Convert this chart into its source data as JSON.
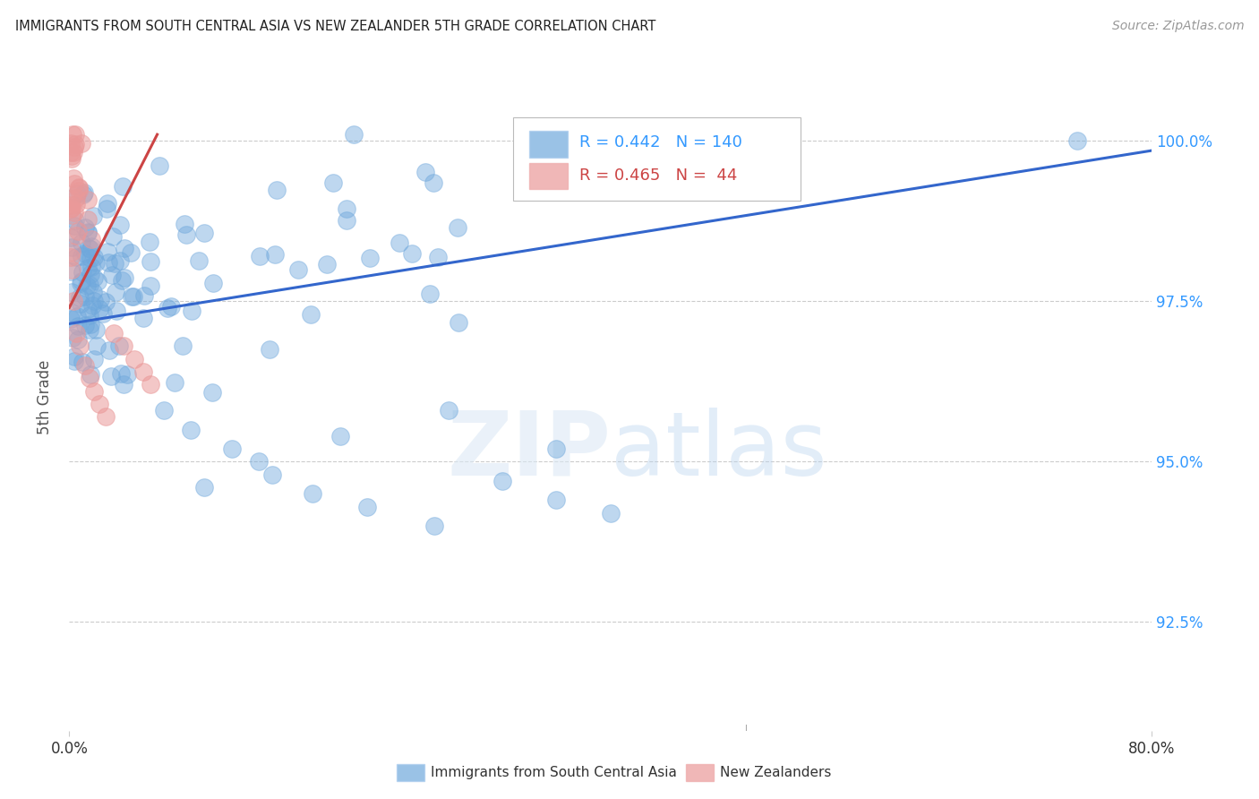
{
  "title": "IMMIGRANTS FROM SOUTH CENTRAL ASIA VS NEW ZEALANDER 5TH GRADE CORRELATION CHART",
  "source": "Source: ZipAtlas.com",
  "ylabel": "5th Grade",
  "ylabel_right_labels": [
    "100.0%",
    "97.5%",
    "95.0%",
    "92.5%"
  ],
  "ylabel_right_values": [
    1.0,
    0.975,
    0.95,
    0.925
  ],
  "x_min": 0.0,
  "x_max": 0.8,
  "y_min": 0.908,
  "y_max": 1.012,
  "legend_blue_label": "Immigrants from South Central Asia",
  "legend_pink_label": "New Zealanders",
  "legend_blue_R": "0.442",
  "legend_blue_N": "140",
  "legend_pink_R": "0.465",
  "legend_pink_N": " 44",
  "blue_color": "#6fa8dc",
  "pink_color": "#ea9999",
  "blue_line_color": "#3366cc",
  "pink_line_color": "#cc4444",
  "watermark_zip": "ZIP",
  "watermark_atlas": "atlas",
  "blue_line_x": [
    0.0,
    0.8
  ],
  "blue_line_y": [
    0.9715,
    0.9985
  ],
  "pink_line_x": [
    0.0,
    0.065
  ],
  "pink_line_y": [
    0.974,
    1.001
  ]
}
